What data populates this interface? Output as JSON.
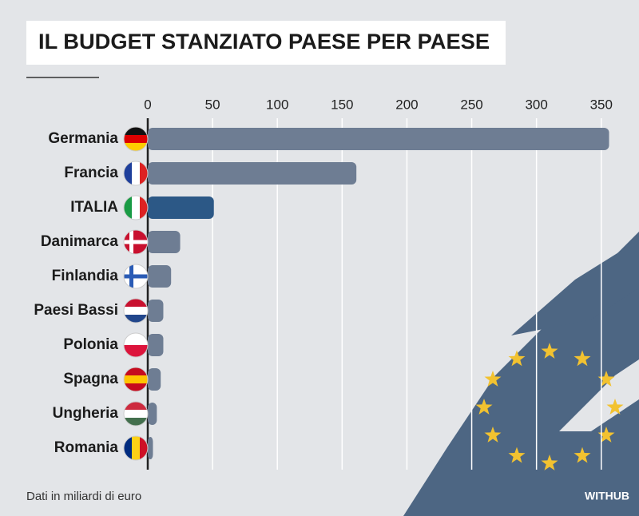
{
  "chart_data": {
    "type": "hbar",
    "title": "IL BUDGET STANZIATO PAESE PER PAESE",
    "categories": [
      "Germania",
      "Francia",
      "ITALIA",
      "Danimarca",
      "Finlandia",
      "Paesi Bassi",
      "Polonia",
      "Spagna",
      "Ungheria",
      "Romania"
    ],
    "values": [
      356,
      161,
      51,
      25,
      18,
      12,
      12,
      10,
      7,
      4
    ],
    "colors": [
      "#6e7d93",
      "#6e7d93",
      "#2c5886",
      "#6e7d93",
      "#6e7d93",
      "#6e7d93",
      "#6e7d93",
      "#6e7d93",
      "#6e7d93",
      "#6e7d93"
    ],
    "xlim": [
      0,
      360
    ],
    "xticks": [
      0,
      50,
      100,
      150,
      200,
      250,
      300,
      350
    ],
    "grid": true,
    "note": "Dati in miliardi di euro",
    "source": "WITHUB"
  }
}
